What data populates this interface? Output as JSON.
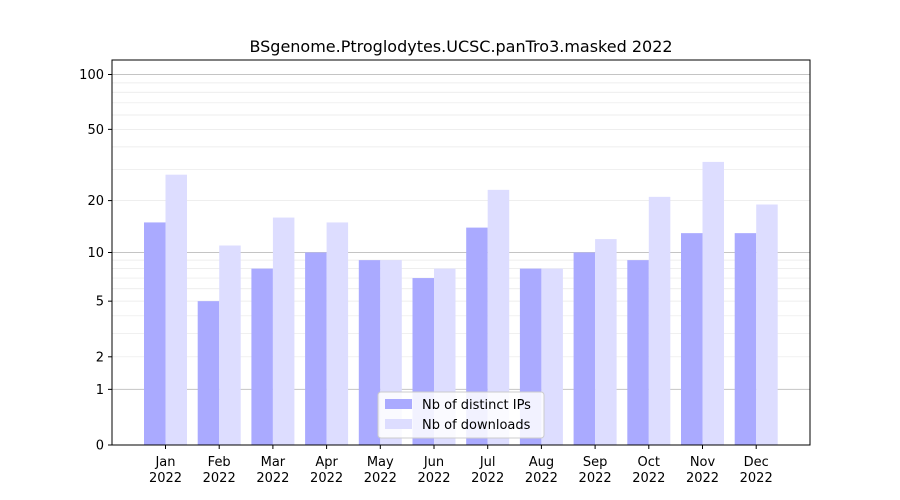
{
  "chart_data": {
    "type": "bar",
    "title": "BSgenome.Ptroglodytes.UCSC.panTro3.masked 2022",
    "xlabel": "",
    "ylabel": "",
    "scale": "log1p",
    "categories": [
      {
        "month": "Jan",
        "year": "2022"
      },
      {
        "month": "Feb",
        "year": "2022"
      },
      {
        "month": "Mar",
        "year": "2022"
      },
      {
        "month": "Apr",
        "year": "2022"
      },
      {
        "month": "May",
        "year": "2022"
      },
      {
        "month": "Jun",
        "year": "2022"
      },
      {
        "month": "Jul",
        "year": "2022"
      },
      {
        "month": "Aug",
        "year": "2022"
      },
      {
        "month": "Sep",
        "year": "2022"
      },
      {
        "month": "Oct",
        "year": "2022"
      },
      {
        "month": "Nov",
        "year": "2022"
      },
      {
        "month": "Dec",
        "year": "2022"
      }
    ],
    "series": [
      {
        "name": "Nb of distinct IPs",
        "color": "#aaaaff",
        "values": [
          15,
          5,
          8,
          10,
          9,
          7,
          14,
          8,
          10,
          9,
          13,
          13
        ]
      },
      {
        "name": "Nb of downloads",
        "color": "#ddddff",
        "values": [
          28,
          11,
          16,
          15,
          9,
          8,
          23,
          8,
          12,
          21,
          33,
          19
        ]
      }
    ],
    "yticks": [
      0,
      1,
      2,
      5,
      10,
      20,
      50,
      100
    ],
    "ylim": [
      0,
      120
    ],
    "grid": true,
    "legend_position": "bottom-center"
  }
}
